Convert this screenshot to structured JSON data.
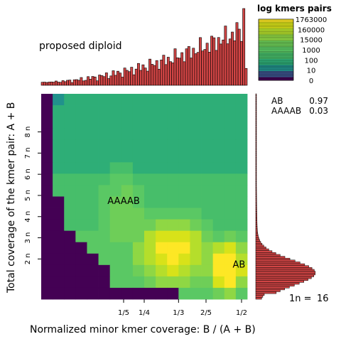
{
  "chart_data": {
    "type": "heatmap",
    "title": "proposed diploid",
    "xlabel": "Normalized minor kmer coverage: B / (A + B)",
    "ylabel": "Total coverage of the kmer pair: A + B",
    "x_ticks": [
      "1/5",
      "1/4",
      "1/3",
      "2/5",
      "1/2"
    ],
    "y_ticks": [
      "2 n",
      "3 n",
      "4 n",
      "5 n",
      "6 n",
      "7 n",
      "8 n"
    ],
    "xlim": [
      0,
      0.5
    ],
    "ylim_n": [
      0.3,
      10
    ],
    "legend": {
      "title": "log kmers pairs",
      "labels": [
        "1763000",
        "160000",
        "15000",
        "1000",
        "100",
        "10",
        "0"
      ],
      "placement": "top-right"
    },
    "smudge_labels": [
      {
        "label": "AAAAB",
        "x": 0.2,
        "y_n": 4.8
      },
      {
        "label": "AB",
        "x": 0.48,
        "y_n": 1.8
      }
    ],
    "proportions": [
      {
        "structure": "AB",
        "value": "0.97"
      },
      {
        "structure": "AAAAB",
        "value": "0.03"
      }
    ],
    "n_estimate": {
      "label": "1n =",
      "value": "16"
    },
    "colors": {
      "bar_fill": "#d24545",
      "bar_edge": "#000000",
      "background_low": "#440154",
      "palette": [
        "#440154",
        "#3b528b",
        "#21918c",
        "#2eae77",
        "#47be6a",
        "#5ac864",
        "#6ece58",
        "#8fd744",
        "#b5de2b",
        "#d8e219",
        "#fde725"
      ]
    }
  }
}
